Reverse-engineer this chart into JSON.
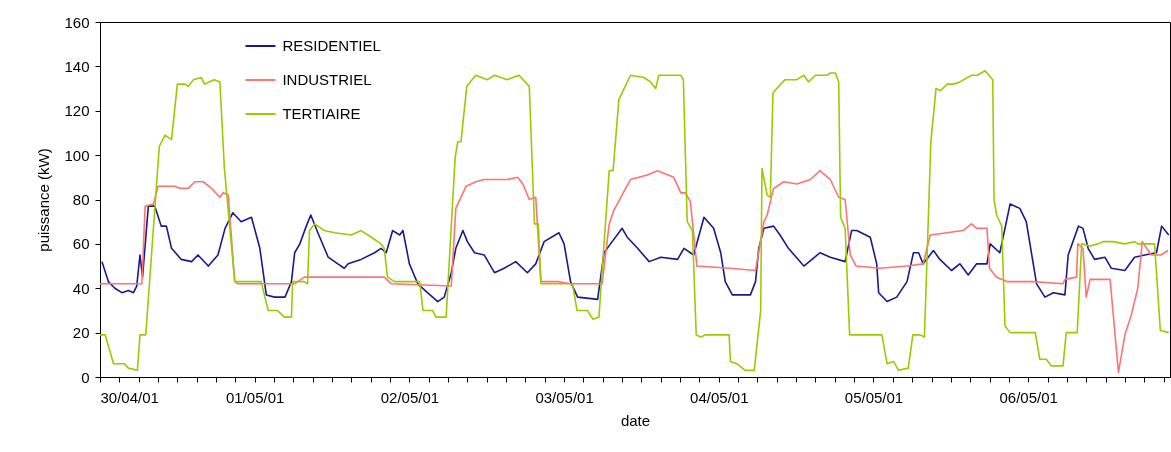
{
  "chart_data": {
    "type": "line",
    "xlabel": "date",
    "ylabel": "puissance (kW)",
    "legend": "top left",
    "grid": false,
    "xlim": [
      "--04-30T00:00",
      "--05-06T22:00"
    ],
    "ylim": [
      0,
      160
    ],
    "yticks": [
      0,
      20,
      40,
      60,
      80,
      100,
      120,
      140,
      160
    ],
    "xticks": [
      {
        "value": "--04-30T00:00",
        "label": "30/04/01"
      },
      {
        "value": "--04-30T03:00",
        "label": null
      },
      {
        "value": "--04-30T06:00",
        "label": null
      },
      {
        "value": "--04-30T09:00",
        "label": null
      },
      {
        "value": "--04-30T12:00",
        "label": null
      },
      {
        "value": "--04-30T15:00",
        "label": null
      },
      {
        "value": "--04-30T18:00",
        "label": null
      },
      {
        "value": "--04-30T21:00",
        "label": null
      },
      {
        "value": "--05-01T00:00",
        "label": "01/05/01"
      },
      {
        "value": "--05-01T03:00",
        "label": null
      },
      {
        "value": "--05-01T06:00",
        "label": null
      },
      {
        "value": "--05-01T09:00",
        "label": null
      },
      {
        "value": "--05-01T12:00",
        "label": null
      },
      {
        "value": "--05-01T15:00",
        "label": null
      },
      {
        "value": "--05-01T18:00",
        "label": null
      },
      {
        "value": "--05-01T21:00",
        "label": null
      },
      {
        "value": "--05-02T00:00",
        "label": "02/05/01"
      },
      {
        "value": "--05-02T03:00",
        "label": null
      },
      {
        "value": "--05-02T06:00",
        "label": null
      },
      {
        "value": "--05-02T09:00",
        "label": null
      },
      {
        "value": "--05-02T12:00",
        "label": null
      },
      {
        "value": "--05-02T15:00",
        "label": null
      },
      {
        "value": "--05-02T18:00",
        "label": null
      },
      {
        "value": "--05-02T21:00",
        "label": null
      },
      {
        "value": "--05-03T00:00",
        "label": "03/05/01"
      },
      {
        "value": "--05-03T03:00",
        "label": null
      },
      {
        "value": "--05-03T06:00",
        "label": null
      },
      {
        "value": "--05-03T09:00",
        "label": null
      },
      {
        "value": "--05-03T12:00",
        "label": null
      },
      {
        "value": "--05-03T15:00",
        "label": null
      },
      {
        "value": "--05-03T18:00",
        "label": null
      },
      {
        "value": "--05-03T21:00",
        "label": null
      },
      {
        "value": "--05-04T00:00",
        "label": "04/05/01"
      },
      {
        "value": "--05-04T03:00",
        "label": null
      },
      {
        "value": "--05-04T06:00",
        "label": null
      },
      {
        "value": "--05-04T09:00",
        "label": null
      },
      {
        "value": "--05-04T12:00",
        "label": null
      },
      {
        "value": "--05-04T15:00",
        "label": null
      },
      {
        "value": "--05-04T18:00",
        "label": null
      },
      {
        "value": "--05-04T21:00",
        "label": null
      },
      {
        "value": "--05-05T00:00",
        "label": "05/05/01"
      },
      {
        "value": "--05-05T03:00",
        "label": null
      },
      {
        "value": "--05-05T06:00",
        "label": null
      },
      {
        "value": "--05-05T09:00",
        "label": null
      },
      {
        "value": "--05-05T12:00",
        "label": null
      },
      {
        "value": "--05-05T15:00",
        "label": null
      },
      {
        "value": "--05-05T18:00",
        "label": null
      },
      {
        "value": "--05-05T21:00",
        "label": null
      },
      {
        "value": "--05-06T00:00",
        "label": "06/05/01"
      },
      {
        "value": "--05-06T03:00",
        "label": null
      },
      {
        "value": "--05-06T06:00",
        "label": null
      },
      {
        "value": "--05-06T09:00",
        "label": null
      },
      {
        "value": "--05-06T12:00",
        "label": null
      },
      {
        "value": "--05-06T15:00",
        "label": null
      },
      {
        "value": "--05-06T18:00",
        "label": null
      },
      {
        "value": "--05-06T21:00",
        "label": null
      }
    ],
    "series": [
      {
        "name": "RESIDENTIEL",
        "color": "#1a1a8c",
        "x": [
          "--04-30T00:18",
          "--04-30T01:18",
          "--04-30T02:18",
          "--04-30T03:24",
          "--04-30T04:24",
          "--04-30T05:12",
          "--04-30T05:42",
          "--04-30T06:12",
          "--04-30T06:36",
          "--04-30T07:30",
          "--04-30T08:30",
          "--04-30T09:30",
          "--04-30T10:18",
          "--04-30T11:06",
          "--04-30T12:36",
          "--04-30T14:12",
          "--04-30T15:12",
          "--04-30T16:48",
          "--04-30T18:18",
          "--04-30T19:24",
          "--04-30T20:36",
          "--04-30T21:54",
          "--04-30T23:30",
          "--05-01T00:48",
          "--05-01T01:48",
          "--05-01T03:06",
          "--05-01T04:42",
          "--05-01T05:42",
          "--05-01T06:12",
          "--05-01T07:00",
          "--05-01T08:00",
          "--05-01T08:42",
          "--05-01T09:48",
          "--05-01T11:24",
          "--05-01T12:54",
          "--05-01T13:54",
          "--05-01T14:30",
          "--05-01T16:30",
          "--05-01T18:36",
          "--05-01T19:36",
          "--05-01T20:24",
          "--05-01T21:24",
          "--05-01T22:30",
          "--05-01T23:00",
          "--05-02T00:00",
          "--05-02T01:18",
          "--05-02T02:48",
          "--05-02T04:24",
          "--05-02T05:24",
          "--05-02T06:30",
          "--05-02T07:12",
          "--05-02T08:18",
          "--05-02T09:00",
          "--05-02T10:06",
          "--05-02T11:36",
          "--05-02T13:12",
          "--05-02T14:42",
          "--05-02T16:30",
          "--05-02T18:18",
          "--05-02T19:36",
          "--05-02T20:54",
          "--05-02T23:12",
          "--05-03T00:00",
          "--05-03T01:00",
          "--05-03T02:06",
          "--05-03T05:12",
          "--05-03T06:12",
          "--05-03T07:12",
          "--05-03T09:00",
          "--05-03T09:48",
          "--05-03T11:24",
          "--05-03T13:12",
          "--05-03T15:00",
          "--05-03T17:36",
          "--05-03T18:36",
          "--05-03T20:06",
          "--05-03T21:42",
          "--05-03T23:12",
          "--05-04T00:18",
          "--05-04T01:00",
          "--05-04T02:06",
          "--05-04T04:54",
          "--05-04T05:42",
          "--05-04T06:12",
          "--05-04T07:00",
          "--05-04T08:30",
          "--05-04T09:30",
          "--05-04T10:48",
          "--05-04T13:12",
          "--05-04T15:42",
          "--05-04T17:18",
          "--05-04T19:36",
          "--05-04T20:36",
          "--05-04T21:24",
          "--05-04T23:30",
          "--05-05T00:30",
          "--05-05T00:48",
          "--05-05T02:06",
          "--05-05T03:36",
          "--05-05T05:12",
          "--05-05T06:12",
          "--05-05T07:00",
          "--05-05T07:42",
          "--05-05T09:18",
          "--05-05T10:18",
          "--05-05T12:06",
          "--05-05T13:24",
          "--05-05T14:42",
          "--05-05T16:00",
          "--05-05T17:36",
          "--05-05T18:06",
          "--05-05T19:36",
          "--05-05T21:12",
          "--05-05T22:42",
          "--05-05T23:42",
          "--05-06T01:18",
          "--05-06T02:36",
          "--05-06T03:54",
          "--05-06T05:42",
          "--05-06T06:12",
          "--05-06T07:48",
          "--05-06T08:30",
          "--05-06T09:18",
          "--05-06T10:18",
          "--05-06T11:54",
          "--05-06T12:54",
          "--05-06T15:00",
          "--05-06T16:30",
          "--05-06T18:06",
          "--05-06T19:54",
          "--05-06T20:42",
          "--05-06T21:48"
        ],
        "values": [
          52,
          43,
          40,
          38,
          39,
          38,
          41,
          55,
          45,
          77,
          77,
          68,
          68,
          58,
          53,
          52,
          55,
          50,
          55,
          67,
          74,
          70,
          72,
          58,
          37,
          36,
          36,
          43,
          56,
          60,
          68,
          73,
          65,
          54,
          51,
          49,
          51,
          53,
          56,
          58,
          56,
          66,
          64,
          66,
          51,
          42,
          38,
          34,
          36,
          47,
          58,
          66,
          61,
          56,
          55,
          47,
          49,
          52,
          47,
          51,
          61,
          65,
          60,
          43,
          36,
          35,
          56,
          60,
          67,
          63,
          58,
          52,
          54,
          53,
          58,
          55,
          72,
          67,
          56,
          43,
          37,
          37,
          43,
          58,
          67,
          68,
          64,
          58,
          50,
          56,
          54,
          52,
          66,
          66,
          63,
          51,
          38,
          34,
          36,
          43,
          56,
          56,
          51,
          57,
          53,
          48,
          51,
          46,
          51,
          51,
          60,
          56,
          78,
          76,
          70,
          42,
          36,
          38,
          37,
          55,
          68,
          67,
          58,
          53,
          54,
          49,
          48,
          54,
          55,
          56,
          68,
          64
        ]
      },
      {
        "name": "INDUSTRIEL",
        "color": "#ff7373",
        "x": [
          "--04-30T00:00",
          "--04-30T06:30",
          "--04-30T07:00",
          "--04-30T08:18",
          "--04-30T09:00",
          "--04-30T10:06",
          "--04-30T11:36",
          "--04-30T12:24",
          "--04-30T13:42",
          "--04-30T14:42",
          "--04-30T16:00",
          "--04-30T17:18",
          "--04-30T18:36",
          "--04-30T19:06",
          "--04-30T19:54",
          "--04-30T20:54",
          "--04-30T21:24",
          "--05-01T06:12",
          "--05-01T07:42",
          "--05-01T20:06",
          "--05-01T21:12",
          "--05-02T06:30",
          "--05-02T07:12",
          "--05-02T08:48",
          "--05-02T10:18",
          "--05-02T11:36",
          "--05-02T13:12",
          "--05-02T15:12",
          "--05-02T16:48",
          "--05-02T17:36",
          "--05-02T18:36",
          "--05-02T19:36",
          "--05-02T20:24",
          "--05-02T23:00",
          "--05-03T01:00",
          "--05-03T05:54",
          "--05-03T07:00",
          "--05-03T07:42",
          "--05-03T08:48",
          "--05-03T10:18",
          "--05-03T12:54",
          "--05-03T14:30",
          "--05-03T17:00",
          "--05-03T18:06",
          "--05-03T18:48",
          "--05-03T19:36",
          "--05-03T20:36",
          "--05-04T01:48",
          "--05-04T05:42",
          "--05-04T07:00",
          "--05-04T07:30",
          "--05-04T08:30",
          "--05-04T10:06",
          "--05-04T12:06",
          "--05-04T14:12",
          "--05-04T15:42",
          "--05-04T17:18",
          "--05-04T18:36",
          "--05-04T19:36",
          "--05-04T20:24",
          "--05-04T21:18",
          "--05-05T01:00",
          "--05-05T05:12",
          "--05-05T07:42",
          "--05-05T08:48",
          "--05-05T11:24",
          "--05-05T13:54",
          "--05-05T15:12",
          "--05-05T16:00",
          "--05-05T17:36",
          "--05-05T18:00",
          "--05-05T19:06",
          "--05-05T20:42",
          "--05-06T00:48",
          "--05-06T05:24",
          "--05-06T05:42",
          "--05-06T07:30",
          "--05-06T07:42",
          "--05-06T08:30",
          "--05-06T09:00",
          "--05-06T09:36",
          "--05-06T12:42",
          "--05-06T13:12",
          "--05-06T14:00",
          "--05-06T15:00",
          "--05-06T16:00",
          "--05-06T17:00",
          "--05-06T17:42",
          "--05-06T19:06",
          "--05-06T20:36",
          "--05-06T21:42"
        ],
        "values": [
          42,
          42,
          77,
          78,
          86,
          86,
          86,
          85,
          85,
          88,
          88,
          85,
          81,
          83,
          82,
          43,
          42,
          42,
          45,
          45,
          42,
          41,
          76,
          86,
          88,
          89,
          89,
          89,
          90,
          87,
          80,
          81,
          43,
          43,
          42,
          42,
          69,
          75,
          81,
          89,
          91,
          93,
          90,
          83,
          83,
          79,
          50,
          49,
          48,
          70,
          73,
          85,
          88,
          87,
          89,
          93,
          89,
          81,
          80,
          55,
          50,
          49,
          50,
          51,
          64,
          65,
          66,
          69,
          67,
          67,
          49,
          45,
          43,
          43,
          42,
          44,
          45,
          60,
          58,
          36,
          44,
          44,
          28,
          2,
          19,
          28,
          40,
          61,
          55,
          55,
          57
        ]
      },
      {
        "name": "TERTIAIRE",
        "color": "#99cc00",
        "x": [
          "--04-30T00:00",
          "--04-30T00:48",
          "--04-30T02:06",
          "--04-30T03:48",
          "--04-30T04:24",
          "--04-30T05:48",
          "--04-30T06:12",
          "--04-30T07:06",
          "--04-30T09:12",
          "--04-30T10:06",
          "--04-30T11:06",
          "--04-30T12:00",
          "--04-30T13:12",
          "--04-30T13:42",
          "--04-30T14:30",
          "--04-30T15:42",
          "--04-30T16:12",
          "--04-30T17:42",
          "--04-30T18:36",
          "--04-30T19:18",
          "--04-30T20:54",
          "--05-01T01:00",
          "--05-01T02:06",
          "--05-01T03:30",
          "--05-01T04:36",
          "--05-01T05:42",
          "--05-01T05:54",
          "--05-01T07:42",
          "--05-01T08:12",
          "--05-01T08:30",
          "--05-01T09:18",
          "--05-01T10:48",
          "--05-01T12:24",
          "--05-01T15:00",
          "--05-01T16:30",
          "--05-01T18:06",
          "--05-01T19:36",
          "--05-01T20:06",
          "--05-01T20:36",
          "--05-01T21:42",
          "--05-02T01:36",
          "--05-02T02:06",
          "--05-02T03:36",
          "--05-02T04:06",
          "--05-02T05:42",
          "--05-02T07:06",
          "--05-02T07:30",
          "--05-02T08:00",
          "--05-02T08:54",
          "--05-02T10:18",
          "--05-02T12:06",
          "--05-02T13:12",
          "--05-02T15:12",
          "--05-02T17:00",
          "--05-02T18:36",
          "--05-02T19:24",
          "--05-02T20:00",
          "--05-02T20:24",
          "--05-03T01:18",
          "--05-03T02:00",
          "--05-03T03:36",
          "--05-03T04:30",
          "--05-03T05:24",
          "--05-03T07:00",
          "--05-03T07:36",
          "--05-03T08:30",
          "--05-03T10:18",
          "--05-03T12:24",
          "--05-03T13:24",
          "--05-03T14:12",
          "--05-03T14:42",
          "--05-03T18:06",
          "--05-03T18:30",
          "--05-03T19:06",
          "--05-03T19:54",
          "--05-03T20:30",
          "--05-03T21:12",
          "--05-03T21:54",
          "--05-04T01:36",
          "--05-04T01:48",
          "--05-04T02:48",
          "--05-04T04:06",
          "--05-04T05:30",
          "--05-04T06:30",
          "--05-04T06:42",
          "--05-04T07:30",
          "--05-04T08:00",
          "--05-04T08:24",
          "--05-04T09:36",
          "--05-04T10:18",
          "--05-04T12:06",
          "--05-04T13:12",
          "--05-04T13:54",
          "--05-04T15:00",
          "--05-04T16:48",
          "--05-04T17:18",
          "--05-04T18:06",
          "--05-04T18:36",
          "--05-04T18:54",
          "--05-04T19:36",
          "--05-04T20:18",
          "--05-04T21:12",
          "--05-05T01:18",
          "--05-05T02:06",
          "--05-05T03:06",
          "--05-05T03:54",
          "--05-05T05:24",
          "--05-05T06:06",
          "--05-05T07:12",
          "--05-05T07:54",
          "--05-05T08:54",
          "--05-05T09:42",
          "--05-05T10:24",
          "--05-05T11:24",
          "--05-05T12:24",
          "--05-05T13:24",
          "--05-05T15:12",
          "--05-05T16:06",
          "--05-05T17:18",
          "--05-05T18:30",
          "--05-05T18:42",
          "--05-05T19:06",
          "--05-05T19:54",
          "--05-05T20:24",
          "--05-05T21:12",
          "--05-06T01:06",
          "--05-06T01:48",
          "--05-06T02:48",
          "--05-06T03:36",
          "--05-06T05:24",
          "--05-06T05:54",
          "--05-06T07:36",
          "--05-06T08:18",
          "--05-06T09:36",
          "--05-06T10:48",
          "--05-06T11:36",
          "--05-06T13:12",
          "--05-06T15:00",
          "--05-06T16:30",
          "--05-06T17:00",
          "--05-06T19:36",
          "--05-06T20:30",
          "--05-06T21:48"
        ],
        "values": [
          19,
          19,
          6,
          6,
          4,
          3,
          19,
          19,
          104,
          109,
          107,
          132,
          132,
          131,
          134,
          135,
          132,
          134,
          133,
          94,
          43,
          43,
          30,
          30,
          27,
          27,
          43,
          43,
          42,
          66,
          69,
          66,
          65,
          64,
          66,
          63,
          60,
          58,
          45,
          43,
          43,
          30,
          30,
          27,
          27,
          99,
          106,
          106,
          131,
          136,
          134,
          136,
          134,
          136,
          131,
          69,
          69,
          42,
          42,
          30,
          30,
          26,
          27,
          93,
          93,
          125,
          136,
          135,
          133,
          130,
          136,
          136,
          134,
          70,
          66,
          19,
          18,
          19,
          19,
          7,
          6,
          3,
          3,
          30,
          94,
          82,
          81,
          128,
          132,
          134,
          134,
          136,
          133,
          136,
          136,
          137,
          137,
          133,
          72,
          67,
          19,
          19,
          19,
          6,
          7,
          3,
          4,
          19,
          19,
          18,
          106,
          130,
          129,
          132,
          132,
          133,
          136,
          136,
          138,
          134,
          80,
          73,
          68,
          23,
          20,
          20,
          8,
          8,
          5,
          5,
          20,
          20,
          60,
          59,
          60,
          61,
          61,
          60,
          61,
          60,
          60,
          21,
          20
        ]
      }
    ]
  }
}
